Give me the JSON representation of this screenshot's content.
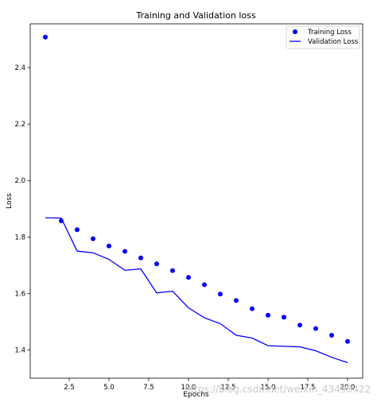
{
  "chart_data": {
    "type": "line",
    "title": "Training and Validation loss",
    "xlabel": "Epochs",
    "ylabel": "Loss",
    "xlim": [
      0.05,
      20.95
    ],
    "ylim": [
      1.3,
      2.555
    ],
    "xticks": [
      2.5,
      5.0,
      7.5,
      10.0,
      12.5,
      15.0,
      17.5,
      20.0
    ],
    "xtick_labels": [
      "2.5",
      "5.0",
      "7.5",
      "10.0",
      "12.5",
      "15.0",
      "17.5",
      "20.0"
    ],
    "yticks": [
      1.4,
      1.6,
      1.8,
      2.0,
      2.2,
      2.4
    ],
    "ytick_labels": [
      "1.4",
      "1.6",
      "1.8",
      "2.0",
      "2.2",
      "2.4"
    ],
    "x": [
      1,
      2,
      3,
      4,
      5,
      6,
      7,
      8,
      9,
      10,
      11,
      12,
      13,
      14,
      15,
      16,
      17,
      18,
      19,
      20
    ],
    "series": [
      {
        "name": "Training Loss",
        "style": "scatter",
        "color": "#0000ff",
        "values": [
          2.508,
          1.857,
          1.826,
          1.794,
          1.768,
          1.749,
          1.726,
          1.705,
          1.681,
          1.657,
          1.631,
          1.598,
          1.575,
          1.546,
          1.523,
          1.516,
          1.488,
          1.476,
          1.452,
          1.43
        ]
      },
      {
        "name": "Validation Loss",
        "style": "line",
        "color": "#0000ff",
        "values": [
          1.868,
          1.867,
          1.75,
          1.744,
          1.721,
          1.682,
          1.687,
          1.602,
          1.608,
          1.549,
          1.514,
          1.493,
          1.452,
          1.442,
          1.415,
          1.413,
          1.411,
          1.397,
          1.374,
          1.355
        ]
      }
    ],
    "legend_position": "top-right",
    "grid": false
  },
  "watermark": "https://blog.csdn.net/weixin_43490422"
}
